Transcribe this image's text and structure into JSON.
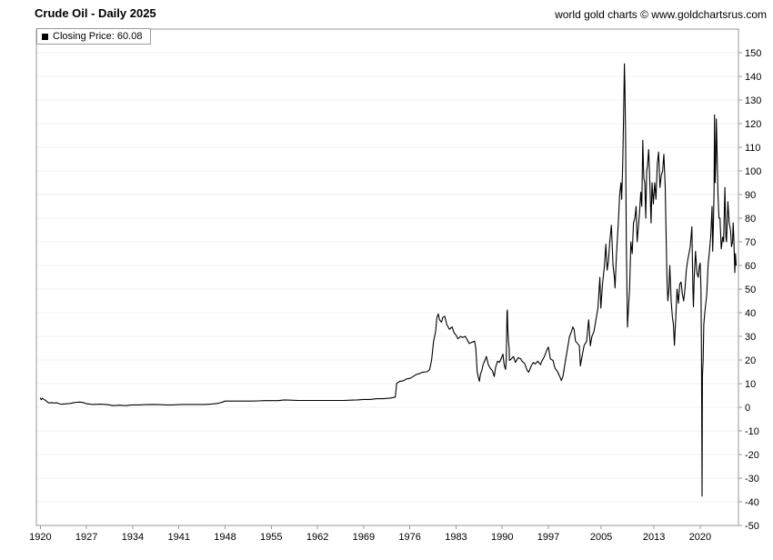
{
  "header": {
    "title": "Crude Oil - Daily 2025",
    "copyright": "world gold charts © www.goldchartsrus.com"
  },
  "legend": {
    "label": "Closing Price: 60.08",
    "marker_color": "#000000"
  },
  "chart_data": {
    "type": "line",
    "title": "Crude Oil - Daily 2025",
    "series_name": "Closing Price",
    "closing_price": 60.08,
    "line_color": "#000000",
    "grid": "faint-horizontal",
    "legend_position": "top-left",
    "xlim": [
      1919.4,
      2025.8
    ],
    "ylim": [
      -50,
      160
    ],
    "x_ticks": [
      1920,
      1927,
      1934,
      1941,
      1948,
      1955,
      1962,
      1969,
      1976,
      1983,
      1990,
      1997,
      2005,
      2013,
      2020
    ],
    "y_ticks": [
      150,
      140,
      130,
      120,
      110,
      100,
      90,
      80,
      70,
      60,
      50,
      40,
      30,
      20,
      10,
      0,
      -10,
      -20,
      -30,
      -40,
      -50
    ],
    "points": [
      [
        1920.0,
        3.9
      ],
      [
        1920.15,
        3.2
      ],
      [
        1920.3,
        3.8
      ],
      [
        1920.5,
        3.4
      ],
      [
        1920.75,
        3.0
      ],
      [
        1921.0,
        2.4
      ],
      [
        1921.3,
        1.8
      ],
      [
        1921.7,
        2.0
      ],
      [
        1922.0,
        1.8
      ],
      [
        1922.5,
        1.9
      ],
      [
        1923.0,
        1.4
      ],
      [
        1923.5,
        1.3
      ],
      [
        1924.0,
        1.5
      ],
      [
        1924.5,
        1.6
      ],
      [
        1925.0,
        1.9
      ],
      [
        1925.5,
        2.1
      ],
      [
        1926.0,
        2.2
      ],
      [
        1926.5,
        2.0
      ],
      [
        1927.0,
        1.5
      ],
      [
        1927.5,
        1.3
      ],
      [
        1928.0,
        1.2
      ],
      [
        1929.0,
        1.3
      ],
      [
        1930.0,
        1.2
      ],
      [
        1930.5,
        1.0
      ],
      [
        1931.0,
        0.7
      ],
      [
        1931.5,
        0.8
      ],
      [
        1932.0,
        0.9
      ],
      [
        1933.0,
        0.7
      ],
      [
        1933.5,
        0.9
      ],
      [
        1934.0,
        1.0
      ],
      [
        1935.0,
        1.0
      ],
      [
        1936.0,
        1.1
      ],
      [
        1937.0,
        1.2
      ],
      [
        1938.0,
        1.1
      ],
      [
        1939.0,
        1.0
      ],
      [
        1940.0,
        1.0
      ],
      [
        1941.0,
        1.1
      ],
      [
        1942.0,
        1.2
      ],
      [
        1943.0,
        1.2
      ],
      [
        1944.0,
        1.2
      ],
      [
        1945.0,
        1.2
      ],
      [
        1946.0,
        1.4
      ],
      [
        1946.8,
        1.6
      ],
      [
        1947.2,
        1.9
      ],
      [
        1947.6,
        2.2
      ],
      [
        1948.0,
        2.6
      ],
      [
        1949.0,
        2.6
      ],
      [
        1950.0,
        2.6
      ],
      [
        1951.0,
        2.6
      ],
      [
        1952.0,
        2.6
      ],
      [
        1953.0,
        2.7
      ],
      [
        1954.0,
        2.8
      ],
      [
        1955.0,
        2.8
      ],
      [
        1956.0,
        2.8
      ],
      [
        1957.0,
        3.1
      ],
      [
        1958.0,
        3.0
      ],
      [
        1959.0,
        2.9
      ],
      [
        1960.0,
        2.9
      ],
      [
        1962.0,
        2.9
      ],
      [
        1964.0,
        2.9
      ],
      [
        1966.0,
        2.9
      ],
      [
        1967.0,
        3.0
      ],
      [
        1968.0,
        3.1
      ],
      [
        1969.0,
        3.3
      ],
      [
        1970.0,
        3.3
      ],
      [
        1971.0,
        3.6
      ],
      [
        1972.0,
        3.6
      ],
      [
        1973.0,
        3.9
      ],
      [
        1973.8,
        4.3
      ],
      [
        1974.0,
        10.1
      ],
      [
        1974.5,
        11.0
      ],
      [
        1975.0,
        11.2
      ],
      [
        1975.5,
        12.0
      ],
      [
        1976.0,
        12.2
      ],
      [
        1976.5,
        13.0
      ],
      [
        1977.0,
        13.9
      ],
      [
        1977.5,
        14.3
      ],
      [
        1978.0,
        14.9
      ],
      [
        1978.6,
        15.0
      ],
      [
        1979.0,
        15.9
      ],
      [
        1979.3,
        20.0
      ],
      [
        1979.6,
        28.0
      ],
      [
        1979.9,
        32.0
      ],
      [
        1980.1,
        38.0
      ],
      [
        1980.3,
        39.5
      ],
      [
        1980.5,
        37.0
      ],
      [
        1980.8,
        36.0
      ],
      [
        1981.0,
        38.0
      ],
      [
        1981.3,
        38.5
      ],
      [
        1981.6,
        35.0
      ],
      [
        1982.0,
        33.0
      ],
      [
        1982.4,
        34.0
      ],
      [
        1982.7,
        31.5
      ],
      [
        1983.0,
        30.5
      ],
      [
        1983.3,
        29.0
      ],
      [
        1983.7,
        30.0
      ],
      [
        1984.0,
        29.5
      ],
      [
        1984.4,
        30.0
      ],
      [
        1984.8,
        28.0
      ],
      [
        1985.0,
        27.0
      ],
      [
        1985.4,
        27.5
      ],
      [
        1985.8,
        28.0
      ],
      [
        1986.0,
        25.0
      ],
      [
        1986.2,
        15.0
      ],
      [
        1986.4,
        12.5
      ],
      [
        1986.55,
        11.0
      ],
      [
        1986.7,
        14.0
      ],
      [
        1986.9,
        15.5
      ],
      [
        1987.1,
        18.0
      ],
      [
        1987.4,
        20.0
      ],
      [
        1987.6,
        21.5
      ],
      [
        1987.9,
        18.0
      ],
      [
        1988.2,
        16.5
      ],
      [
        1988.5,
        15.5
      ],
      [
        1988.8,
        13.0
      ],
      [
        1989.0,
        17.0
      ],
      [
        1989.3,
        19.5
      ],
      [
        1989.6,
        19.0
      ],
      [
        1989.9,
        21.0
      ],
      [
        1990.1,
        22.5
      ],
      [
        1990.3,
        18.0
      ],
      [
        1990.5,
        16.0
      ],
      [
        1990.62,
        20.0
      ],
      [
        1990.73,
        40.0
      ],
      [
        1990.78,
        41.1
      ],
      [
        1990.85,
        33.0
      ],
      [
        1990.95,
        28.0
      ],
      [
        1991.05,
        25.0
      ],
      [
        1991.1,
        19.8
      ],
      [
        1991.4,
        20.5
      ],
      [
        1991.7,
        21.5
      ],
      [
        1992.0,
        19.0
      ],
      [
        1992.4,
        21.0
      ],
      [
        1992.8,
        20.5
      ],
      [
        1993.0,
        19.5
      ],
      [
        1993.4,
        18.5
      ],
      [
        1993.8,
        15.5
      ],
      [
        1994.0,
        14.8
      ],
      [
        1994.4,
        17.5
      ],
      [
        1994.7,
        19.0
      ],
      [
        1995.0,
        18.3
      ],
      [
        1995.4,
        19.5
      ],
      [
        1995.8,
        18.0
      ],
      [
        1996.0,
        19.5
      ],
      [
        1996.4,
        21.5
      ],
      [
        1996.8,
        24.5
      ],
      [
        1997.0,
        25.5
      ],
      [
        1997.3,
        20.5
      ],
      [
        1997.7,
        19.8
      ],
      [
        1998.0,
        16.5
      ],
      [
        1998.4,
        15.0
      ],
      [
        1998.8,
        12.5
      ],
      [
        1998.95,
        11.3
      ],
      [
        1999.2,
        13.0
      ],
      [
        1999.6,
        20.0
      ],
      [
        1999.9,
        25.0
      ],
      [
        2000.2,
        30.0
      ],
      [
        2000.5,
        32.0
      ],
      [
        2000.7,
        34.0
      ],
      [
        2000.9,
        33.0
      ],
      [
        2001.1,
        28.0
      ],
      [
        2001.4,
        27.0
      ],
      [
        2001.7,
        26.0
      ],
      [
        2001.85,
        17.5
      ],
      [
        2002.0,
        20.0
      ],
      [
        2002.4,
        26.0
      ],
      [
        2002.8,
        28.0
      ],
      [
        2003.1,
        37.0
      ],
      [
        2003.35,
        26.0
      ],
      [
        2003.6,
        30.0
      ],
      [
        2003.9,
        32.0
      ],
      [
        2004.2,
        37.0
      ],
      [
        2004.5,
        42.0
      ],
      [
        2004.8,
        55.0
      ],
      [
        2004.95,
        42.0
      ],
      [
        2005.2,
        52.0
      ],
      [
        2005.5,
        60.0
      ],
      [
        2005.7,
        69.0
      ],
      [
        2005.9,
        58.0
      ],
      [
        2006.1,
        62.0
      ],
      [
        2006.3,
        70.0
      ],
      [
        2006.55,
        77.0
      ],
      [
        2006.8,
        60.0
      ],
      [
        2007.0,
        55.0
      ],
      [
        2007.1,
        50.5
      ],
      [
        2007.3,
        64.0
      ],
      [
        2007.6,
        78.0
      ],
      [
        2007.8,
        90.0
      ],
      [
        2008.0,
        95.0
      ],
      [
        2008.1,
        88.0
      ],
      [
        2008.25,
        102.0
      ],
      [
        2008.4,
        125.0
      ],
      [
        2008.52,
        145.3
      ],
      [
        2008.6,
        135.0
      ],
      [
        2008.7,
        115.0
      ],
      [
        2008.8,
        70.0
      ],
      [
        2008.9,
        50.0
      ],
      [
        2008.98,
        33.9
      ],
      [
        2009.1,
        40.0
      ],
      [
        2009.3,
        50.0
      ],
      [
        2009.5,
        70.0
      ],
      [
        2009.7,
        65.0
      ],
      [
        2009.9,
        78.0
      ],
      [
        2010.1,
        80.0
      ],
      [
        2010.3,
        85.0
      ],
      [
        2010.45,
        70.0
      ],
      [
        2010.6,
        75.0
      ],
      [
        2010.8,
        82.0
      ],
      [
        2011.0,
        91.0
      ],
      [
        2011.15,
        85.0
      ],
      [
        2011.3,
        113.0
      ],
      [
        2011.45,
        97.0
      ],
      [
        2011.6,
        95.0
      ],
      [
        2011.75,
        80.0
      ],
      [
        2011.9,
        100.0
      ],
      [
        2012.0,
        102.0
      ],
      [
        2012.2,
        109.0
      ],
      [
        2012.4,
        92.0
      ],
      [
        2012.55,
        78.0
      ],
      [
        2012.7,
        95.0
      ],
      [
        2012.9,
        86.0
      ],
      [
        2013.1,
        95.0
      ],
      [
        2013.3,
        88.0
      ],
      [
        2013.5,
        103.0
      ],
      [
        2013.7,
        108.0
      ],
      [
        2013.9,
        93.0
      ],
      [
        2014.1,
        98.0
      ],
      [
        2014.3,
        100.0
      ],
      [
        2014.5,
        107.0
      ],
      [
        2014.7,
        93.0
      ],
      [
        2014.85,
        70.0
      ],
      [
        2014.98,
        53.0
      ],
      [
        2015.1,
        45.0
      ],
      [
        2015.25,
        50.0
      ],
      [
        2015.4,
        60.0
      ],
      [
        2015.6,
        45.0
      ],
      [
        2015.8,
        38.0
      ],
      [
        2015.95,
        35.0
      ],
      [
        2016.1,
        26.2
      ],
      [
        2016.3,
        38.0
      ],
      [
        2016.5,
        50.0
      ],
      [
        2016.7,
        44.0
      ],
      [
        2016.9,
        52.0
      ],
      [
        2017.1,
        53.0
      ],
      [
        2017.3,
        48.0
      ],
      [
        2017.5,
        45.0
      ],
      [
        2017.7,
        50.0
      ],
      [
        2017.9,
        58.0
      ],
      [
        2018.1,
        62.0
      ],
      [
        2018.3,
        65.0
      ],
      [
        2018.5,
        68.0
      ],
      [
        2018.75,
        76.4
      ],
      [
        2018.9,
        50.0
      ],
      [
        2018.98,
        42.5
      ],
      [
        2019.1,
        55.0
      ],
      [
        2019.3,
        66.0
      ],
      [
        2019.5,
        57.0
      ],
      [
        2019.7,
        55.0
      ],
      [
        2019.9,
        60.0
      ],
      [
        2020.0,
        61.0
      ],
      [
        2020.12,
        50.0
      ],
      [
        2020.2,
        20.0
      ],
      [
        2020.29,
        -37.6
      ],
      [
        2020.34,
        13.0
      ],
      [
        2020.45,
        20.0
      ],
      [
        2020.55,
        35.0
      ],
      [
        2020.7,
        40.0
      ],
      [
        2020.9,
        45.0
      ],
      [
        2021.0,
        48.0
      ],
      [
        2021.2,
        60.0
      ],
      [
        2021.4,
        66.0
      ],
      [
        2021.6,
        72.0
      ],
      [
        2021.8,
        85.0
      ],
      [
        2021.9,
        66.0
      ],
      [
        2022.0,
        76.0
      ],
      [
        2022.1,
        92.0
      ],
      [
        2022.18,
        123.7
      ],
      [
        2022.27,
        95.0
      ],
      [
        2022.37,
        104.0
      ],
      [
        2022.45,
        122.0
      ],
      [
        2022.55,
        110.0
      ],
      [
        2022.7,
        90.0
      ],
      [
        2022.85,
        80.0
      ],
      [
        2023.0,
        80.0
      ],
      [
        2023.2,
        67.0
      ],
      [
        2023.4,
        72.0
      ],
      [
        2023.55,
        70.0
      ],
      [
        2023.75,
        93.0
      ],
      [
        2023.9,
        72.0
      ],
      [
        2024.0,
        70.0
      ],
      [
        2024.2,
        87.0
      ],
      [
        2024.4,
        78.0
      ],
      [
        2024.6,
        75.0
      ],
      [
        2024.75,
        68.0
      ],
      [
        2024.9,
        70.0
      ],
      [
        2025.0,
        78.0
      ],
      [
        2025.1,
        72.0
      ],
      [
        2025.25,
        57.0
      ],
      [
        2025.35,
        65.0
      ],
      [
        2025.45,
        60.08
      ]
    ]
  }
}
